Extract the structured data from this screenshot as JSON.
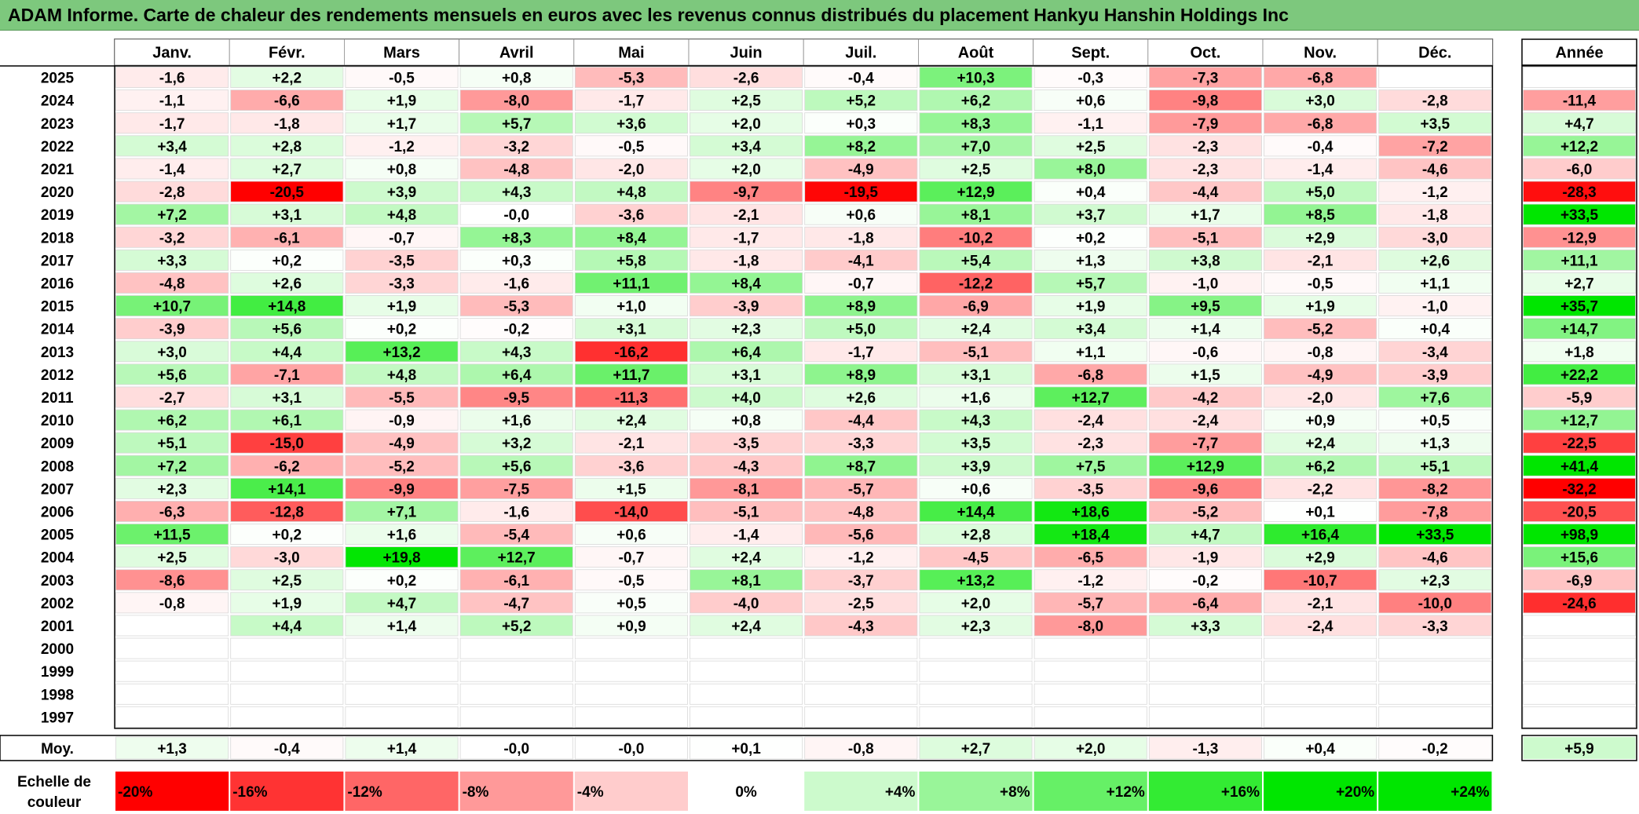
{
  "title": "ADAM Informe. Carte de chaleur des rendements mensuels en euros avec les revenus connus distribués du placement Hankyu Hanshin Holdings Inc",
  "chart_data": {
    "type": "heatmap",
    "months": [
      "Janv.",
      "Févr.",
      "Mars",
      "Avril",
      "Mai",
      "Juin",
      "Juil.",
      "Août",
      "Sept.",
      "Oct.",
      "Nov.",
      "Déc."
    ],
    "year_header": "Année",
    "rows": [
      {
        "year": "2025",
        "values": [
          "-1,6",
          "+2,2",
          "-0,5",
          "+0,8",
          "-5,3",
          "-2,6",
          "-0,4",
          "+10,3",
          "-0,3",
          "-7,3",
          "-6,8",
          ""
        ],
        "annual": ""
      },
      {
        "year": "2024",
        "values": [
          "-1,1",
          "-6,6",
          "+1,9",
          "-8,0",
          "-1,7",
          "+2,5",
          "+5,2",
          "+6,2",
          "+0,6",
          "-9,8",
          "+3,0",
          "-2,8"
        ],
        "annual": "-11,4"
      },
      {
        "year": "2023",
        "values": [
          "-1,7",
          "-1,8",
          "+1,7",
          "+5,7",
          "+3,6",
          "+2,0",
          "+0,3",
          "+8,3",
          "-1,1",
          "-7,9",
          "-6,8",
          "+3,5"
        ],
        "annual": "+4,7"
      },
      {
        "year": "2022",
        "values": [
          "+3,4",
          "+2,8",
          "-1,2",
          "-3,2",
          "-0,5",
          "+3,4",
          "+8,2",
          "+7,0",
          "+2,5",
          "-2,3",
          "-0,4",
          "-7,2"
        ],
        "annual": "+12,2"
      },
      {
        "year": "2021",
        "values": [
          "-1,4",
          "+2,7",
          "+0,8",
          "-4,8",
          "-2,0",
          "+2,0",
          "-4,9",
          "+2,5",
          "+8,0",
          "-2,3",
          "-1,4",
          "-4,6"
        ],
        "annual": "-6,0"
      },
      {
        "year": "2020",
        "values": [
          "-2,8",
          "-20,5",
          "+3,9",
          "+4,3",
          "+4,8",
          "-9,7",
          "-19,5",
          "+12,9",
          "+0,4",
          "-4,4",
          "+5,0",
          "-1,2"
        ],
        "annual": "-28,3"
      },
      {
        "year": "2019",
        "values": [
          "+7,2",
          "+3,1",
          "+4,8",
          "-0,0",
          "-3,6",
          "-2,1",
          "+0,6",
          "+8,1",
          "+3,7",
          "+1,7",
          "+8,5",
          "-1,8"
        ],
        "annual": "+33,5"
      },
      {
        "year": "2018",
        "values": [
          "-3,2",
          "-6,1",
          "-0,7",
          "+8,3",
          "+8,4",
          "-1,7",
          "-1,8",
          "-10,2",
          "+0,2",
          "-5,1",
          "+2,9",
          "-3,0"
        ],
        "annual": "-12,9"
      },
      {
        "year": "2017",
        "values": [
          "+3,3",
          "+0,2",
          "-3,5",
          "+0,3",
          "+5,8",
          "-1,8",
          "-4,1",
          "+5,4",
          "+1,3",
          "+3,8",
          "-2,1",
          "+2,6"
        ],
        "annual": "+11,1"
      },
      {
        "year": "2016",
        "values": [
          "-4,8",
          "+2,6",
          "-3,3",
          "-1,6",
          "+11,1",
          "+8,4",
          "-0,7",
          "-12,2",
          "+5,7",
          "-1,0",
          "-0,5",
          "+1,1"
        ],
        "annual": "+2,7"
      },
      {
        "year": "2015",
        "values": [
          "+10,7",
          "+14,8",
          "+1,9",
          "-5,3",
          "+1,0",
          "-3,9",
          "+8,9",
          "-6,9",
          "+1,9",
          "+9,5",
          "+1,9",
          "-1,0"
        ],
        "annual": "+35,7"
      },
      {
        "year": "2014",
        "values": [
          "-3,9",
          "+5,6",
          "+0,2",
          "-0,2",
          "+3,1",
          "+2,3",
          "+5,0",
          "+2,4",
          "+3,4",
          "+1,4",
          "-5,2",
          "+0,4"
        ],
        "annual": "+14,7"
      },
      {
        "year": "2013",
        "values": [
          "+3,0",
          "+4,4",
          "+13,2",
          "+4,3",
          "-16,2",
          "+6,4",
          "-1,7",
          "-5,1",
          "+1,1",
          "-0,6",
          "-0,8",
          "-3,4"
        ],
        "annual": "+1,8"
      },
      {
        "year": "2012",
        "values": [
          "+5,6",
          "-7,1",
          "+4,8",
          "+6,4",
          "+11,7",
          "+3,1",
          "+8,9",
          "+3,1",
          "-6,8",
          "+1,5",
          "-4,9",
          "-3,9"
        ],
        "annual": "+22,2"
      },
      {
        "year": "2011",
        "values": [
          "-2,7",
          "+3,1",
          "-5,5",
          "-9,5",
          "-11,3",
          "+4,0",
          "+2,6",
          "+1,6",
          "+12,7",
          "-4,2",
          "-2,0",
          "+7,6"
        ],
        "annual": "-5,9"
      },
      {
        "year": "2010",
        "values": [
          "+6,2",
          "+6,1",
          "-0,9",
          "+1,6",
          "+2,4",
          "+0,8",
          "-4,4",
          "+4,3",
          "-2,4",
          "-2,4",
          "+0,9",
          "+0,5"
        ],
        "annual": "+12,7"
      },
      {
        "year": "2009",
        "values": [
          "+5,1",
          "-15,0",
          "-4,9",
          "+3,2",
          "-2,1",
          "-3,5",
          "-3,3",
          "+3,5",
          "-2,3",
          "-7,7",
          "+2,4",
          "+1,3"
        ],
        "annual": "-22,5"
      },
      {
        "year": "2008",
        "values": [
          "+7,2",
          "-6,2",
          "-5,2",
          "+5,6",
          "-3,6",
          "-4,3",
          "+8,7",
          "+3,9",
          "+7,5",
          "+12,9",
          "+6,2",
          "+5,1"
        ],
        "annual": "+41,4"
      },
      {
        "year": "2007",
        "values": [
          "+2,3",
          "+14,1",
          "-9,9",
          "-7,5",
          "+1,5",
          "-8,1",
          "-5,7",
          "+0,6",
          "-3,5",
          "-9,6",
          "-2,2",
          "-8,2"
        ],
        "annual": "-32,2"
      },
      {
        "year": "2006",
        "values": [
          "-6,3",
          "-12,8",
          "+7,1",
          "-1,6",
          "-14,0",
          "-5,1",
          "-4,8",
          "+14,4",
          "+18,6",
          "-5,2",
          "+0,1",
          "-7,8"
        ],
        "annual": "-20,5"
      },
      {
        "year": "2005",
        "values": [
          "+11,5",
          "+0,2",
          "+1,6",
          "-5,4",
          "+0,6",
          "-1,4",
          "-5,6",
          "+2,8",
          "+18,4",
          "+4,7",
          "+16,4",
          "+33,5"
        ],
        "annual": "+98,9"
      },
      {
        "year": "2004",
        "values": [
          "+2,5",
          "-3,0",
          "+19,8",
          "+12,7",
          "-0,7",
          "+2,4",
          "-1,2",
          "-4,5",
          "-6,5",
          "-1,9",
          "+2,9",
          "-4,6"
        ],
        "annual": "+15,6"
      },
      {
        "year": "2003",
        "values": [
          "-8,6",
          "+2,5",
          "+0,2",
          "-6,1",
          "-0,5",
          "+8,1",
          "-3,7",
          "+13,2",
          "-1,2",
          "-0,2",
          "-10,7",
          "+2,3"
        ],
        "annual": "-6,9"
      },
      {
        "year": "2002",
        "values": [
          "-0,8",
          "+1,9",
          "+4,7",
          "-4,7",
          "+0,5",
          "-4,0",
          "-2,5",
          "+2,0",
          "-5,7",
          "-6,4",
          "-2,1",
          "-10,0"
        ],
        "annual": "-24,6"
      },
      {
        "year": "2001",
        "values": [
          "",
          "+4,4",
          "+1,4",
          "+5,2",
          "+0,9",
          "+2,4",
          "-4,3",
          "+2,3",
          "-8,0",
          "+3,3",
          "-2,4",
          "-3,3"
        ],
        "annual": ""
      },
      {
        "year": "2000",
        "values": [
          "",
          "",
          "",
          "",
          "",
          "",
          "",
          "",
          "",
          "",
          "",
          ""
        ],
        "annual": ""
      },
      {
        "year": "1999",
        "values": [
          "",
          "",
          "",
          "",
          "",
          "",
          "",
          "",
          "",
          "",
          "",
          ""
        ],
        "annual": ""
      },
      {
        "year": "1998",
        "values": [
          "",
          "",
          "",
          "",
          "",
          "",
          "",
          "",
          "",
          "",
          "",
          ""
        ],
        "annual": ""
      },
      {
        "year": "1997",
        "values": [
          "",
          "",
          "",
          "",
          "",
          "",
          "",
          "",
          "",
          "",
          "",
          ""
        ],
        "annual": ""
      }
    ],
    "average": {
      "label": "Moy.",
      "values": [
        "+1,3",
        "-0,4",
        "+1,4",
        "-0,0",
        "-0,0",
        "+0,1",
        "-0,8",
        "+2,7",
        "+2,0",
        "-1,3",
        "+0,4",
        "-0,2"
      ],
      "annual": "+5,9"
    },
    "scale": {
      "label_line1": "Echelle de",
      "label_line2": "couleur",
      "items": [
        {
          "label": "-20%",
          "value": -20
        },
        {
          "label": "-16%",
          "value": -16
        },
        {
          "label": "-12%",
          "value": -12
        },
        {
          "label": "-8%",
          "value": -8
        },
        {
          "label": "-4%",
          "value": -4
        },
        {
          "label": "0%",
          "value": 0
        },
        {
          "label": "+4%",
          "value": 4
        },
        {
          "label": "+8%",
          "value": 8
        },
        {
          "label": "+12%",
          "value": 12
        },
        {
          "label": "+16%",
          "value": 16
        },
        {
          "label": "+20%",
          "value": 20
        },
        {
          "label": "+24%",
          "value": 24
        }
      ]
    },
    "colors": {
      "negative_max": "#ff0000",
      "positive_max": "#00e600",
      "neutral": "#ffffff",
      "title_bg": "#7dc87d"
    }
  }
}
